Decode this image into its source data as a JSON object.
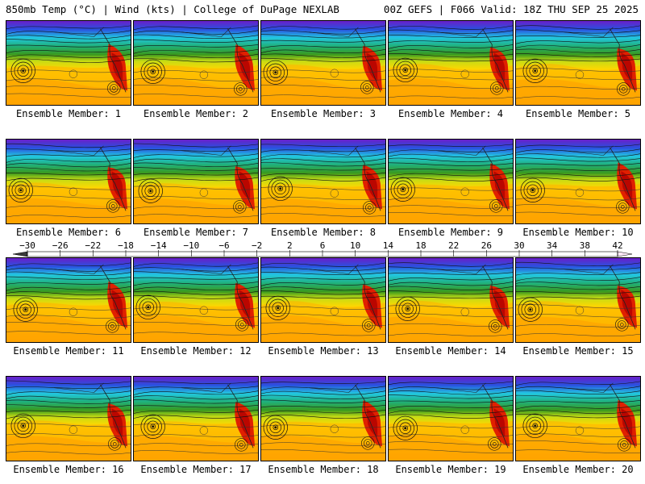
{
  "header": {
    "left": "850mb Temp (°C) | Wind (kts) | College of DuPage NEXLAB",
    "right": "00Z GEFS | F066 Valid: 18Z THU SEP 25 2025"
  },
  "members": [
    "Ensemble Member: 1",
    "Ensemble Member: 2",
    "Ensemble Member: 3",
    "Ensemble Member: 4",
    "Ensemble Member: 5",
    "Ensemble Member: 6",
    "Ensemble Member: 7",
    "Ensemble Member: 8",
    "Ensemble Member: 9",
    "Ensemble Member: 10",
    "Ensemble Member: 11",
    "Ensemble Member: 12",
    "Ensemble Member: 13",
    "Ensemble Member: 14",
    "Ensemble Member: 15",
    "Ensemble Member: 16",
    "Ensemble Member: 17",
    "Ensemble Member: 18",
    "Ensemble Member: 19",
    "Ensemble Member: 20"
  ],
  "colorbar": {
    "ticks": [
      "-30",
      "-26",
      "-22",
      "-18",
      "-14",
      "-10",
      "-6",
      "-2",
      "2",
      "6",
      "10",
      "14",
      "18",
      "22",
      "26",
      "30",
      "34",
      "38",
      "42"
    ],
    "colors": [
      "#4d4d4d",
      "#6e6e6e",
      "#8f8f8f",
      "#b0b0b0",
      "#d2d2d2",
      "#e3c3e3",
      "#d29ad8",
      "#b866d6",
      "#8a2ed0",
      "#5a1fc0",
      "#2a36d6",
      "#2d6ee6",
      "#32a8f0",
      "#2ed8d8",
      "#28c096",
      "#20a050",
      "#3a9a1e",
      "#86c01a",
      "#c8dc14",
      "#f0f000",
      "#ffd700",
      "#ffb000",
      "#ff9000",
      "#ff7000",
      "#ff4a00",
      "#e02000",
      "#c00000",
      "#a00000",
      "#800000",
      "#800040",
      "#a0206a",
      "#c04090",
      "#d866b6",
      "#e890d0",
      "#f4b8e4",
      "#fad8f0"
    ]
  }
}
